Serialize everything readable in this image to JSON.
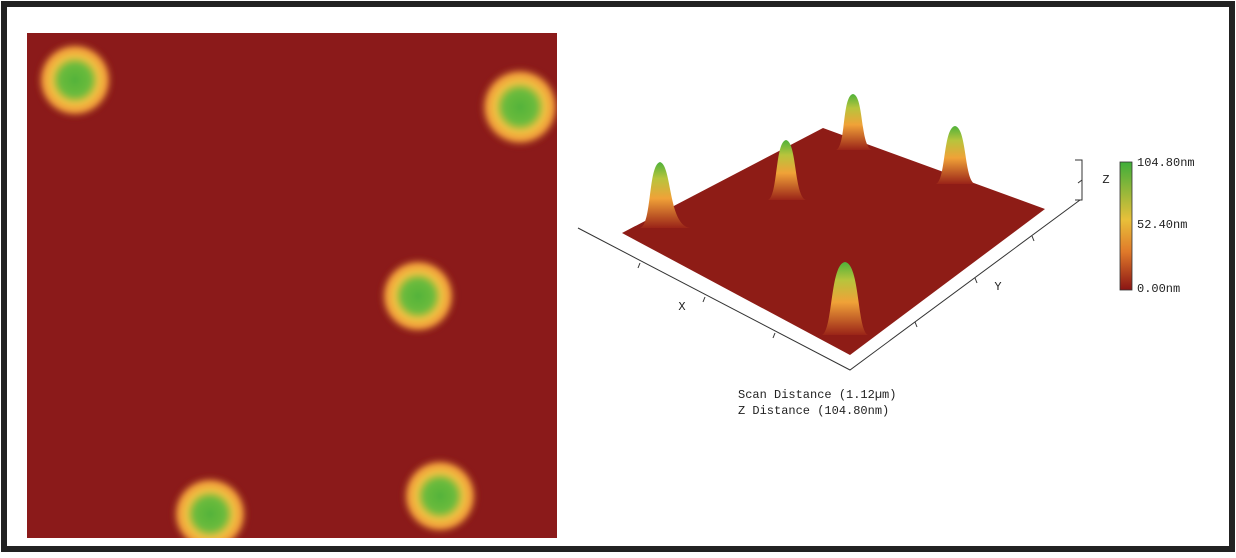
{
  "surface_3d": {
    "axis_labels": {
      "x": "X",
      "y": "Y",
      "z": "Z"
    },
    "scan_distance": "Scan Distance (1.12µm)",
    "z_distance": "Z Distance (104.80nm)"
  },
  "color_scale": {
    "labels": [
      "104.80nm",
      "52.40nm",
      "0.00nm"
    ]
  }
}
